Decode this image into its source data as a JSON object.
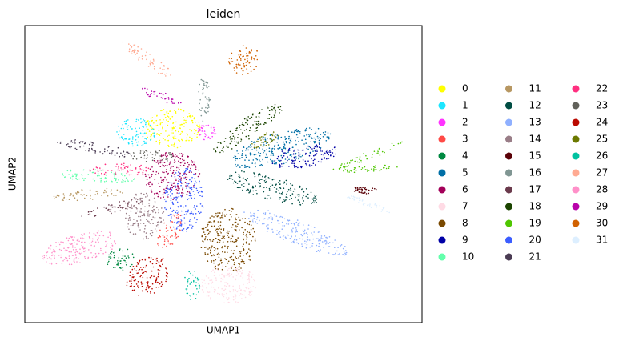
{
  "chart_data": {
    "type": "scatter",
    "title": "leiden",
    "xlabel": "UMAP1",
    "ylabel": "UMAP2",
    "series": [
      {
        "name": "0",
        "color": "#FFFF00"
      },
      {
        "name": "1",
        "color": "#1CE6FF"
      },
      {
        "name": "2",
        "color": "#FF34FF"
      },
      {
        "name": "3",
        "color": "#FF4A46"
      },
      {
        "name": "4",
        "color": "#008941"
      },
      {
        "name": "5",
        "color": "#006FA6"
      },
      {
        "name": "6",
        "color": "#A30059"
      },
      {
        "name": "7",
        "color": "#FFDBE5"
      },
      {
        "name": "8",
        "color": "#7A4900"
      },
      {
        "name": "9",
        "color": "#0000A6"
      },
      {
        "name": "10",
        "color": "#63FFAC"
      },
      {
        "name": "11",
        "color": "#B79762"
      },
      {
        "name": "12",
        "color": "#004D43"
      },
      {
        "name": "13",
        "color": "#8FB0FF"
      },
      {
        "name": "14",
        "color": "#997D87"
      },
      {
        "name": "15",
        "color": "#5A0007"
      },
      {
        "name": "16",
        "color": "#809693"
      },
      {
        "name": "17",
        "color": "#6A3A4C"
      },
      {
        "name": "18",
        "color": "#1B4400"
      },
      {
        "name": "19",
        "color": "#4FC601"
      },
      {
        "name": "20",
        "color": "#3B5DFF"
      },
      {
        "name": "21",
        "color": "#4A3B53"
      },
      {
        "name": "22",
        "color": "#FF2F80"
      },
      {
        "name": "23",
        "color": "#61615A"
      },
      {
        "name": "24",
        "color": "#BA0900"
      },
      {
        "name": "25",
        "color": "#6B7900"
      },
      {
        "name": "26",
        "color": "#00C2A0"
      },
      {
        "name": "27",
        "color": "#FFAA92"
      },
      {
        "name": "28",
        "color": "#FF90C9"
      },
      {
        "name": "29",
        "color": "#B903AA"
      },
      {
        "name": "30",
        "color": "#D16100"
      },
      {
        "name": "31",
        "color": "#DDEFFF"
      }
    ]
  }
}
